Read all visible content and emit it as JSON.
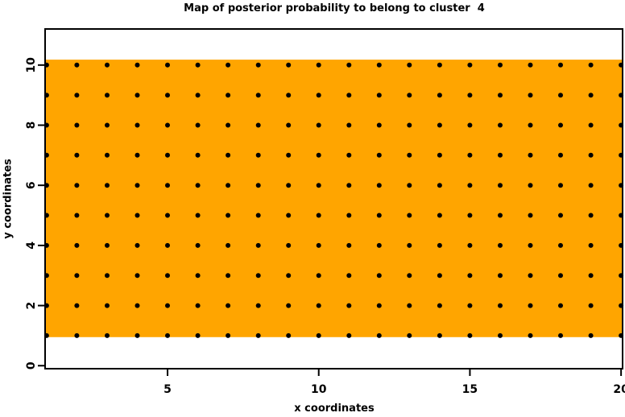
{
  "figure": {
    "title": "Map of posterior probability to belong to cluster  4",
    "xlabel": "x coordinates",
    "ylabel": "y coordinates"
  },
  "chart_data": {
    "type": "scatter",
    "title": "Map of posterior probability to belong to cluster  4",
    "xlabel": "x coordinates",
    "ylabel": "y coordinates",
    "xlim": [
      0.95,
      20.05
    ],
    "ylim": [
      -0.1,
      11.2
    ],
    "x_ticks": [
      5,
      10,
      15,
      20
    ],
    "y_ticks": [
      0,
      2,
      4,
      6,
      8,
      10
    ],
    "grid": false,
    "legend": "none",
    "background_color": "#FFFFFF",
    "axis_color": "#000000",
    "highlight_region": {
      "color": "#FFA500",
      "x_range": [
        0.95,
        20.05
      ],
      "y_range": [
        0.95,
        10.18
      ]
    },
    "points": {
      "marker": "filled-circle",
      "color": "#000000",
      "radius_px": 3,
      "x_values": [
        1,
        2,
        3,
        4,
        5,
        6,
        7,
        8,
        9,
        10,
        11,
        12,
        13,
        14,
        15,
        16,
        17,
        18,
        19,
        20
      ],
      "y_values": [
        1,
        2,
        3,
        4,
        5,
        6,
        7,
        8,
        9,
        10
      ]
    }
  }
}
